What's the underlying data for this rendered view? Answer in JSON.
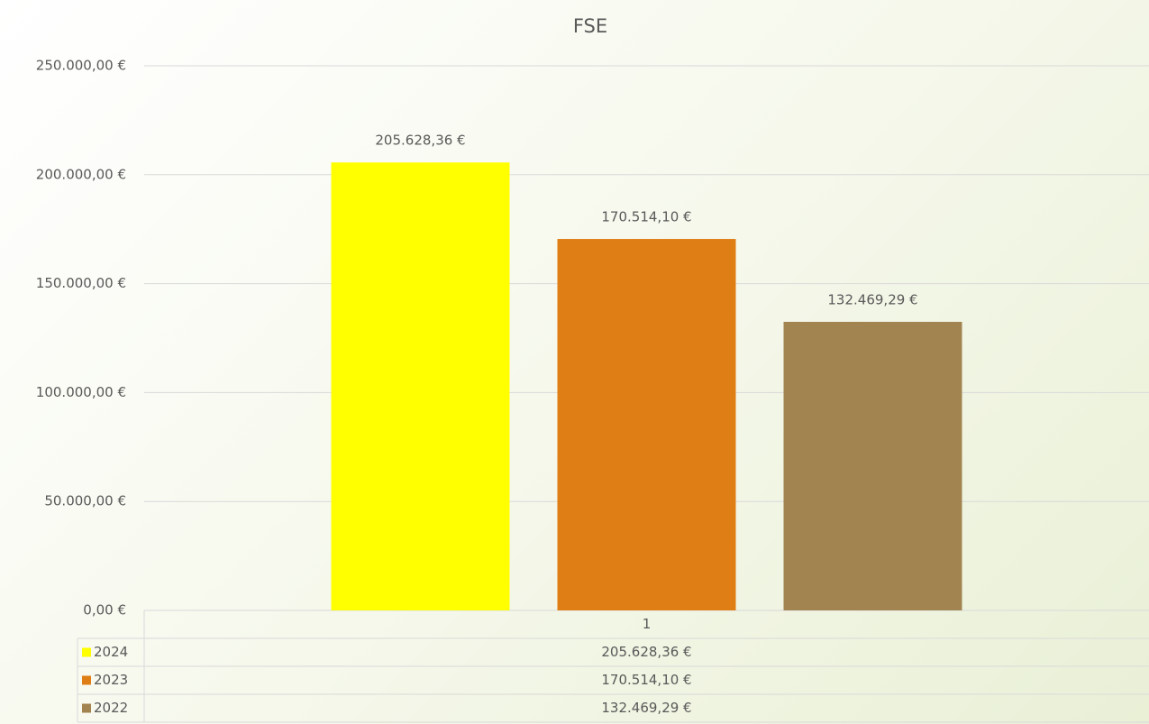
{
  "chart_data": {
    "type": "bar",
    "title": "FSE",
    "categories": [
      "1"
    ],
    "series": [
      {
        "name": "2024",
        "color": "#ffff00",
        "values": [
          205628.36
        ],
        "value_labels": [
          "205.628,36 €"
        ]
      },
      {
        "name": "2023",
        "color": "#e07e16",
        "values": [
          170514.1
        ],
        "value_labels": [
          "170.514,10 €"
        ]
      },
      {
        "name": "2022",
        "color": "#a28450",
        "values": [
          132469.29
        ],
        "value_labels": [
          "132.469,29 €"
        ]
      }
    ],
    "ylim": [
      0,
      250000
    ],
    "yticks": [
      {
        "value": 0,
        "label": "0,00 €"
      },
      {
        "value": 50000,
        "label": "50.000,00 €"
      },
      {
        "value": 100000,
        "label": "100.000,00 €"
      },
      {
        "value": 150000,
        "label": "150.000,00 €"
      },
      {
        "value": 200000,
        "label": "200.000,00 €"
      },
      {
        "value": 250000,
        "label": "250.000,00 €"
      }
    ],
    "grid": true
  }
}
